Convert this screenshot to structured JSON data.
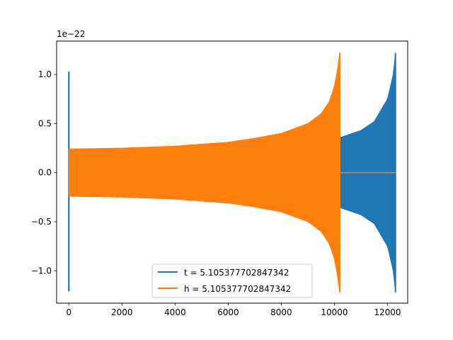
{
  "chart_data": {
    "type": "line",
    "title": "",
    "xlabel": "",
    "ylabel": "",
    "xlim": [
      -460,
      12760
    ],
    "ylim": [
      -1.33,
      1.34
    ],
    "y_offset_label": "1e−22",
    "x_ticks": [
      {
        "value": 0,
        "label": "0"
      },
      {
        "value": 2000,
        "label": "2000"
      },
      {
        "value": 4000,
        "label": "4000"
      },
      {
        "value": 6000,
        "label": "6000"
      },
      {
        "value": 8000,
        "label": "8000"
      },
      {
        "value": 10000,
        "label": "10000"
      },
      {
        "value": 12000,
        "label": "12000"
      }
    ],
    "y_ticks": [
      {
        "value": -1.0,
        "label": "−1.0"
      },
      {
        "value": -0.5,
        "label": "−0.5"
      },
      {
        "value": 0.0,
        "label": "0.0"
      },
      {
        "value": 0.5,
        "label": "0.5"
      },
      {
        "value": 1.0,
        "label": "1.0"
      }
    ],
    "grid": false,
    "legend_position": "lower center",
    "series": [
      {
        "name": "t = 5.105377702847342",
        "color": "#1f77b4",
        "chirp_end_x": 12300,
        "initial_spike_x": 0,
        "initial_spike_min": -1.21,
        "initial_spike_max": 1.03,
        "envelope": [
          {
            "x": 0,
            "amp": 0.24
          },
          {
            "x": 2000,
            "amp": 0.245
          },
          {
            "x": 4000,
            "amp": 0.26
          },
          {
            "x": 6000,
            "amp": 0.285
          },
          {
            "x": 8000,
            "amp": 0.32
          },
          {
            "x": 10000,
            "amp": 0.345
          },
          {
            "x": 10250,
            "amp": 0.36
          },
          {
            "x": 11000,
            "amp": 0.43
          },
          {
            "x": 11500,
            "amp": 0.52
          },
          {
            "x": 12000,
            "amp": 0.75
          },
          {
            "x": 12200,
            "amp": 0.98
          },
          {
            "x": 12280,
            "amp": 1.15
          },
          {
            "x": 12300,
            "amp": 1.22
          }
        ],
        "tail_x": [
          12300,
          12320
        ],
        "tail_value": 0.0
      },
      {
        "name": "h = 5.105377702847342",
        "color": "#ff7f0e",
        "chirp_end_x": 10200,
        "envelope": [
          {
            "x": 0,
            "amp": 0.24
          },
          {
            "x": 2000,
            "amp": 0.25
          },
          {
            "x": 4000,
            "amp": 0.27
          },
          {
            "x": 6000,
            "amp": 0.31
          },
          {
            "x": 7000,
            "amp": 0.35
          },
          {
            "x": 8000,
            "amp": 0.4
          },
          {
            "x": 9000,
            "amp": 0.5
          },
          {
            "x": 9500,
            "amp": 0.6
          },
          {
            "x": 9800,
            "amp": 0.72
          },
          {
            "x": 10000,
            "amp": 0.88
          },
          {
            "x": 10100,
            "amp": 1.02
          },
          {
            "x": 10200,
            "amp": 1.22
          }
        ],
        "tail_x": [
          10200,
          12320
        ],
        "tail_value": 0.0
      }
    ]
  },
  "colors": {
    "background": "#ffffff",
    "axes": "#000000",
    "legend_border": "#cccccc"
  }
}
